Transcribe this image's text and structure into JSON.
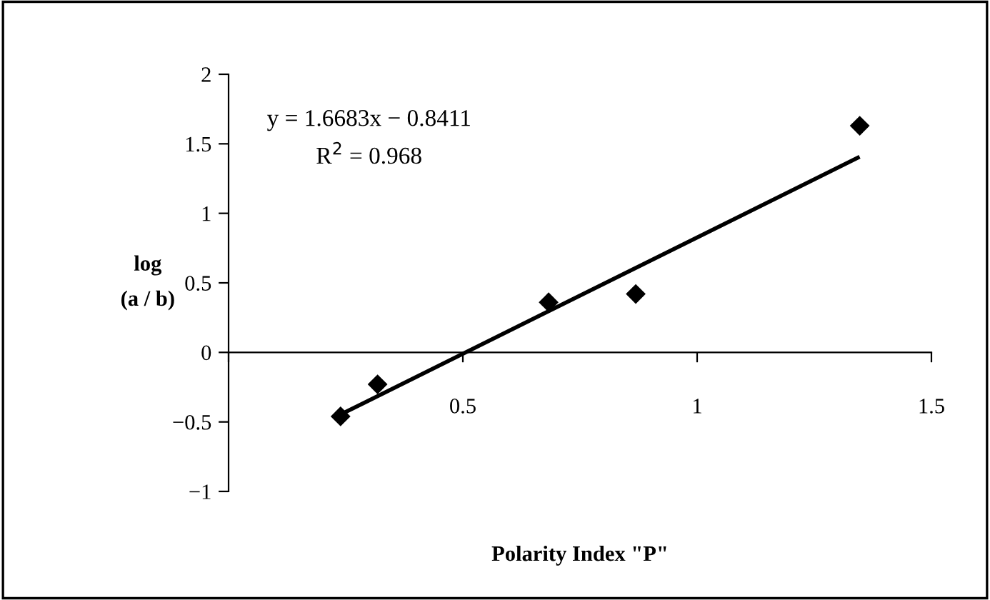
{
  "chart_data": {
    "type": "scatter",
    "xlabel": "Polarity Index \"P\"",
    "ylabel": "log\n(a / b)",
    "xlim": [
      0,
      1.5
    ],
    "xticks": [
      {
        "value": 0,
        "label": null
      },
      0.5,
      1,
      1.5
    ],
    "ylim": [
      -1,
      2
    ],
    "yticks": [
      -1,
      -0.5,
      0,
      0.5,
      1,
      1.5,
      2
    ],
    "annotations": [
      "y = 1.6683x − 0.8411",
      "R$^{2}$ = 0.968"
    ],
    "series": [
      {
        "color": "#000000",
        "marker": "diamond",
        "x": [
          0.239,
          0.318,
          0.683,
          0.869,
          1.347
        ],
        "values": [
          -0.46,
          -0.23,
          0.36,
          0.42,
          1.63
        ]
      },
      {
        "type": "line",
        "color": "#000000",
        "marker": "none",
        "line_style": "solid",
        "x": [
          0.249,
          1.343
        ],
        "values": [
          -0.43,
          1.4
        ]
      }
    ]
  }
}
